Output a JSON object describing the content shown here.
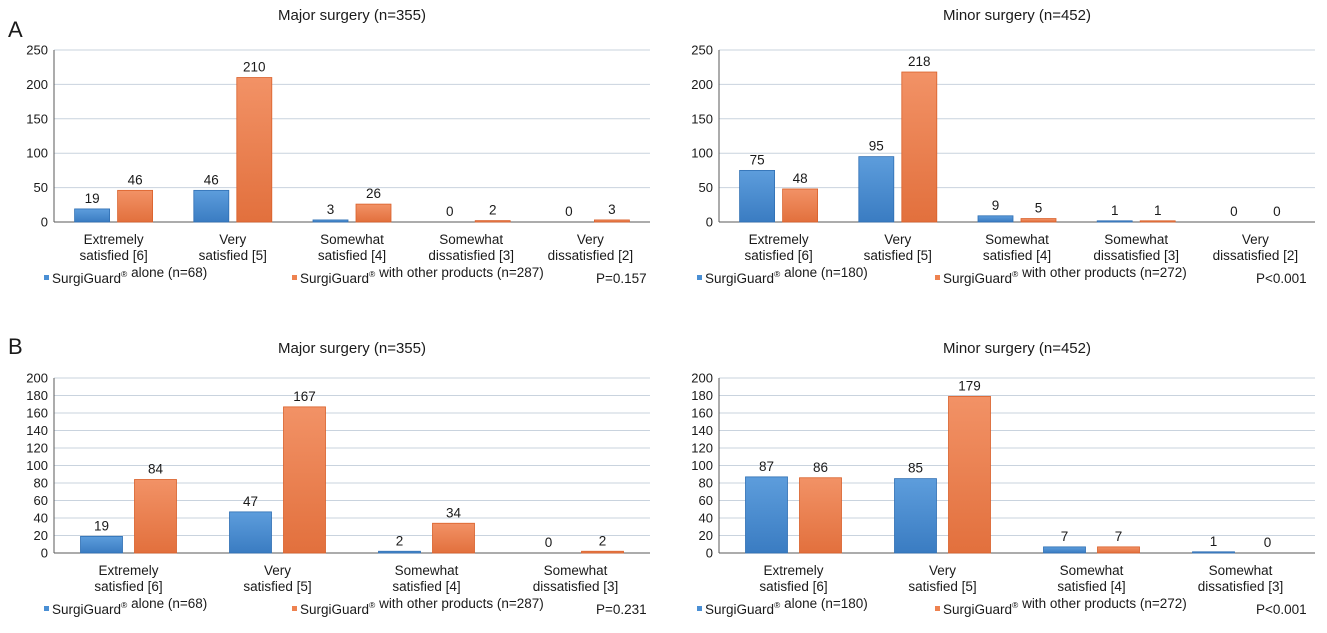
{
  "panel_letters": [
    "A",
    "B"
  ],
  "chart_data": [
    {
      "type": "bar",
      "title": "Major surgery (n=355)",
      "categories": [
        "Extremely\nsatisfied [6]",
        "Very\nsatisfied [5]",
        "Somewhat\nsatisfied [4]",
        "Somewhat\ndissatisfied [3]",
        "Very\ndissatisfied [2]"
      ],
      "series": [
        {
          "name": "SurgiGuard® alone (n=68)",
          "values": [
            19,
            46,
            3,
            0,
            0
          ]
        },
        {
          "name": "SurgiGuard® with other products (n=287)",
          "values": [
            46,
            210,
            26,
            2,
            3
          ]
        }
      ],
      "ylim": [
        0,
        250
      ],
      "yticks": [
        0,
        50,
        100,
        150,
        200,
        250
      ],
      "p_value": "P=0.157",
      "grid": true,
      "legend": "bottom"
    },
    {
      "type": "bar",
      "title": "Minor surgery (n=452)",
      "categories": [
        "Extremely\nsatisfied [6]",
        "Very\nsatisfied [5]",
        "Somewhat\nsatisfied [4]",
        "Somewhat\ndissatisfied [3]",
        "Very\ndissatisfied [2]"
      ],
      "series": [
        {
          "name": "SurgiGuard® alone (n=180)",
          "values": [
            75,
            95,
            9,
            1,
            0
          ]
        },
        {
          "name": "SurgiGuard® with other products (n=272)",
          "values": [
            48,
            218,
            5,
            1,
            0
          ]
        }
      ],
      "ylim": [
        0,
        250
      ],
      "yticks": [
        0,
        50,
        100,
        150,
        200,
        250
      ],
      "p_value": "P<0.001",
      "grid": true,
      "legend": "bottom"
    },
    {
      "type": "bar",
      "title": "Major surgery (n=355)",
      "categories": [
        "Extremely\nsatisfied [6]",
        "Very\nsatisfied [5]",
        "Somewhat\nsatisfied [4]",
        "Somewhat\ndissatisfied [3]"
      ],
      "series": [
        {
          "name": "SurgiGuard® alone (n=68)",
          "values": [
            19,
            47,
            2,
            0
          ]
        },
        {
          "name": "SurgiGuard® with other products (n=287)",
          "values": [
            84,
            167,
            34,
            2
          ]
        }
      ],
      "ylim": [
        0,
        200
      ],
      "yticks": [
        0,
        20,
        40,
        60,
        80,
        100,
        120,
        140,
        160,
        180,
        200
      ],
      "p_value": "P=0.231",
      "grid": true,
      "legend": "bottom"
    },
    {
      "type": "bar",
      "title": "Minor surgery (n=452)",
      "categories": [
        "Extremely\nsatisfied [6]",
        "Very\nsatisfied [5]",
        "Somewhat\nsatisfied [4]",
        "Somewhat\ndissatisfied [3]"
      ],
      "series": [
        {
          "name": "SurgiGuard® alone (n=180)",
          "values": [
            87,
            85,
            7,
            1
          ]
        },
        {
          "name": "SurgiGuard® with other products (n=272)",
          "values": [
            86,
            179,
            7,
            0
          ]
        }
      ],
      "ylim": [
        0,
        200
      ],
      "yticks": [
        0,
        20,
        40,
        60,
        80,
        100,
        120,
        140,
        160,
        180,
        200
      ],
      "p_value": "P<0.001",
      "grid": true,
      "legend": "bottom"
    }
  ],
  "colors": {
    "series_a": "#4a8fd4",
    "series_a_dark": "#2f6fb3",
    "series_b": "#ee8250",
    "series_b_dark": "#d9602a"
  }
}
